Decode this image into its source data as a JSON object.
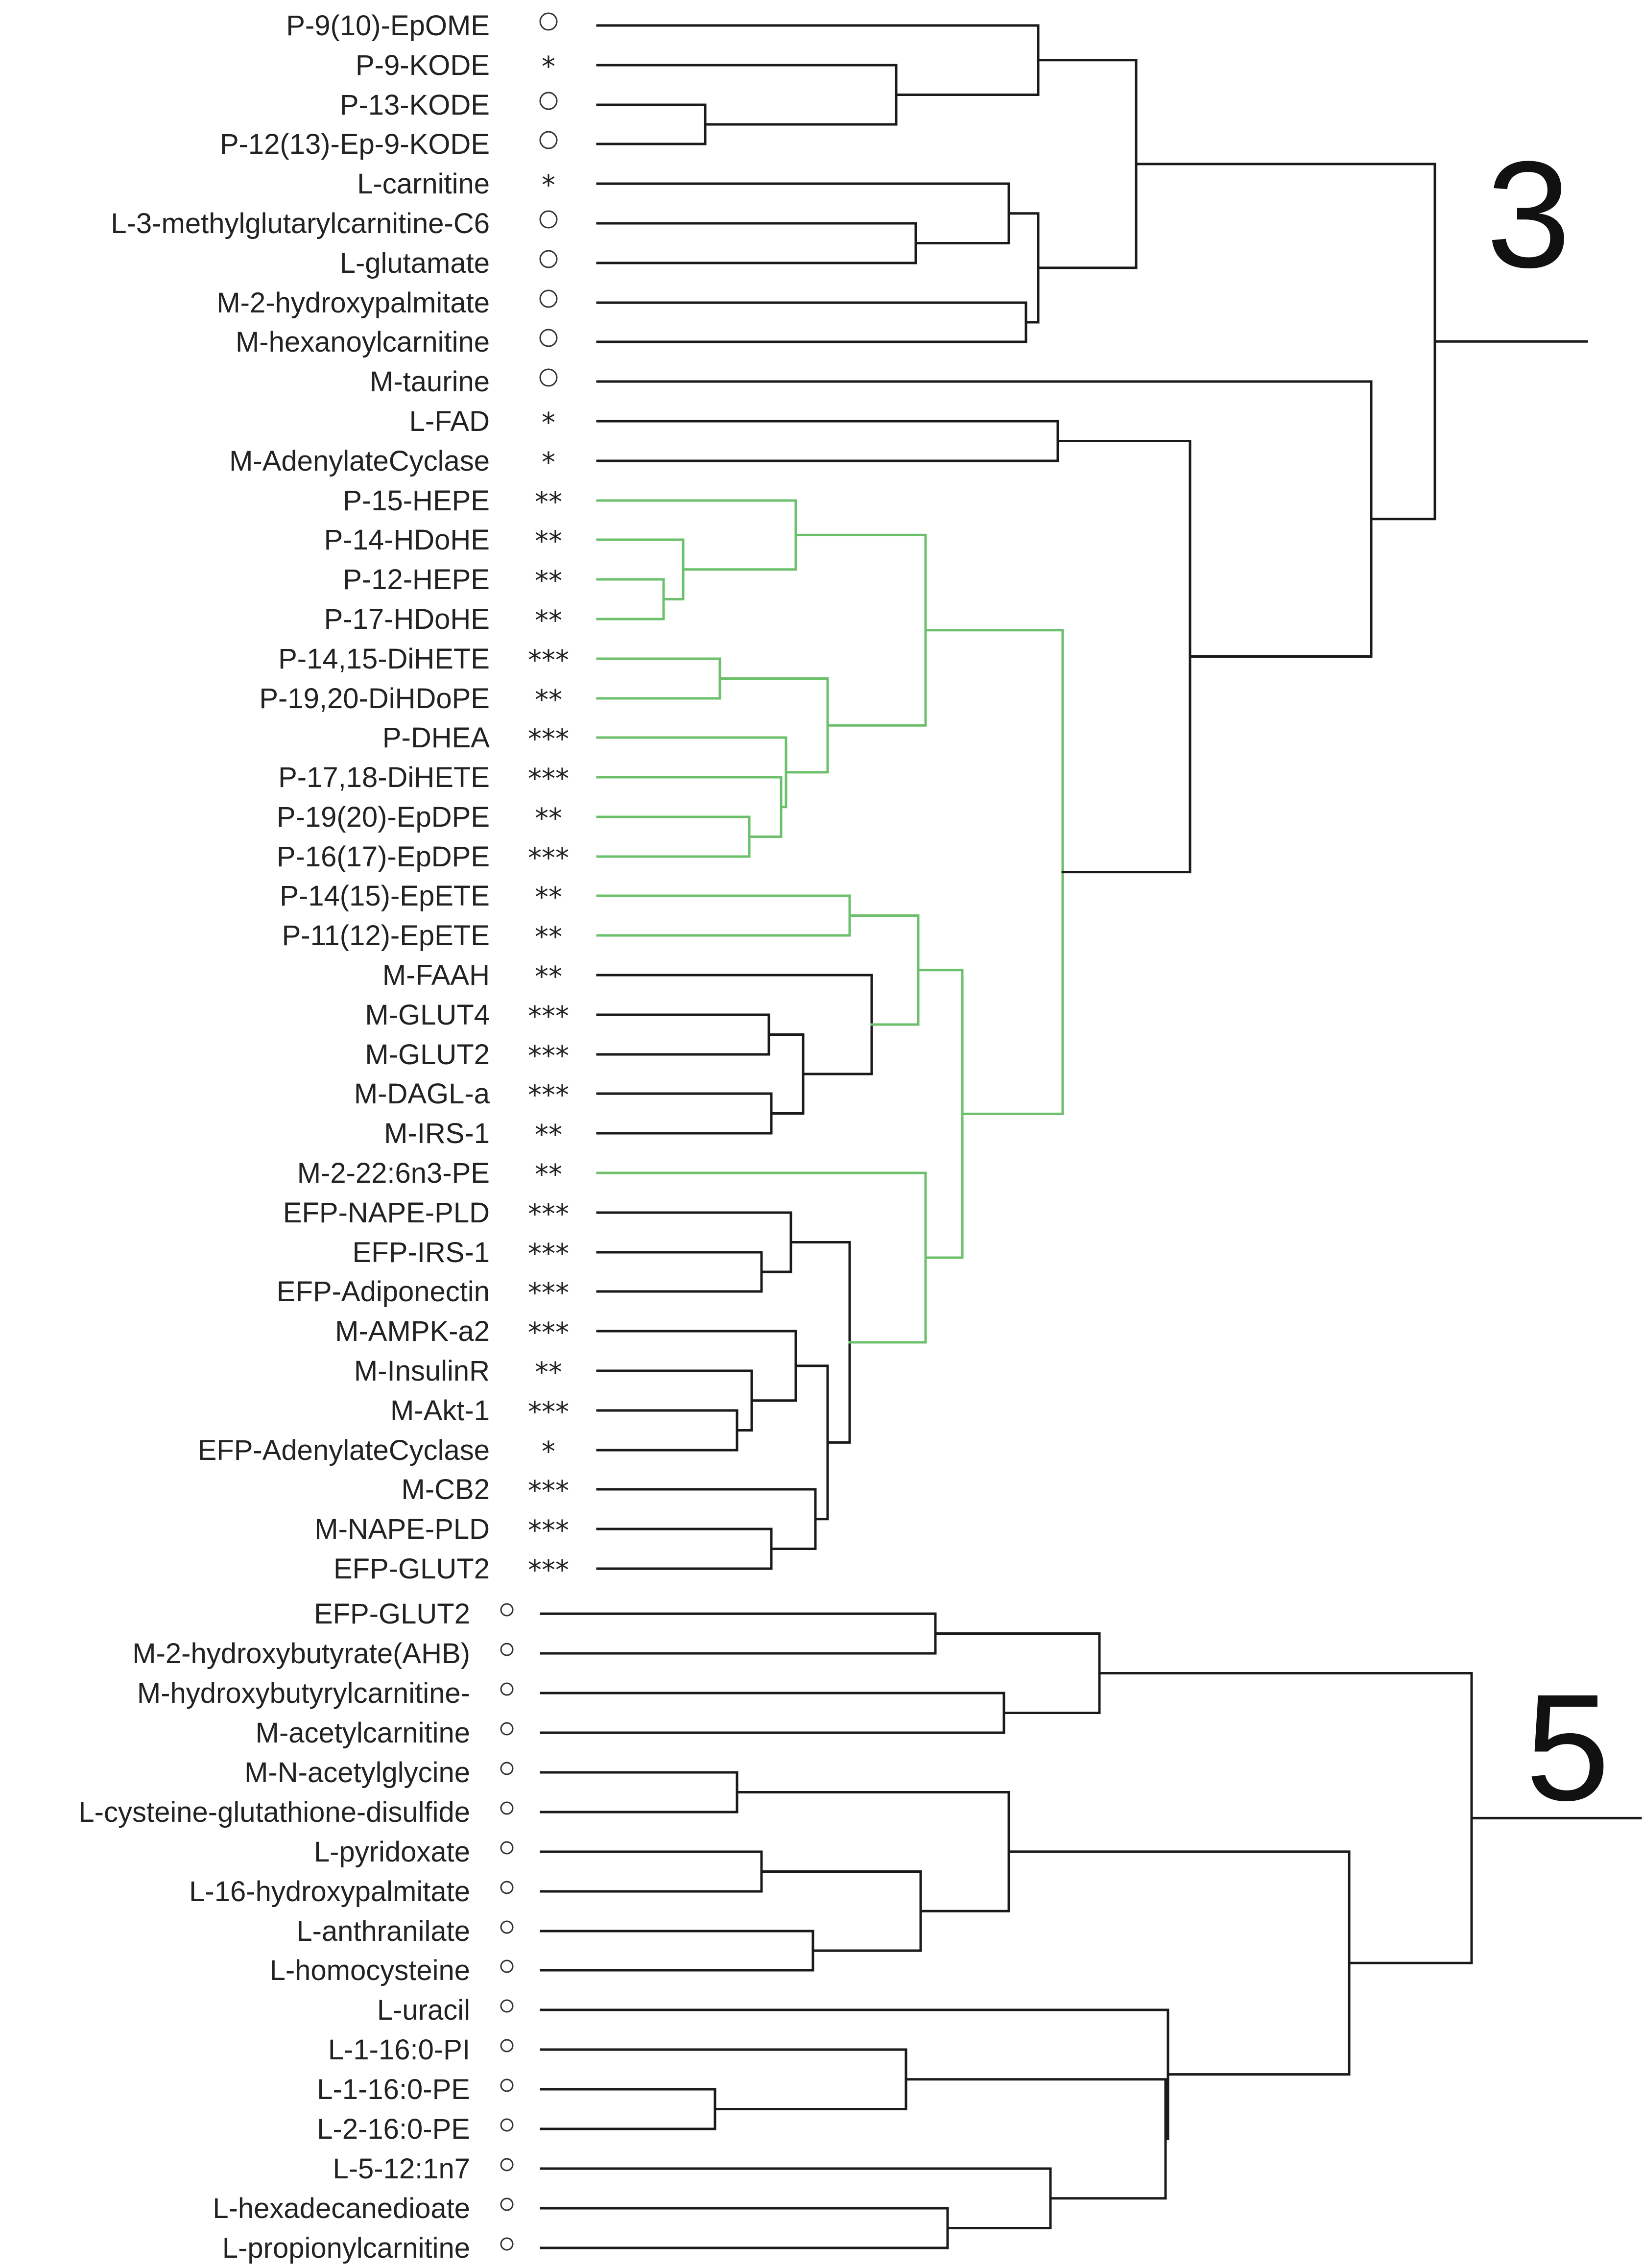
{
  "colors": {
    "default": "#1a1a1a",
    "highlight": "#6cc06c"
  },
  "clusters": [
    {
      "label": "3",
      "leaves": [
        {
          "label": "P-9(10)-EpOME",
          "sig": "○"
        },
        {
          "label": "P-9-KODE",
          "sig": "*"
        },
        {
          "label": "P-13-KODE",
          "sig": "○"
        },
        {
          "label": "P-12(13)-Ep-9-KODE",
          "sig": "○"
        },
        {
          "label": "L-carnitine",
          "sig": "*"
        },
        {
          "label": "L-3-methylglutarylcarnitine-C6",
          "sig": "○"
        },
        {
          "label": "L-glutamate",
          "sig": "○"
        },
        {
          "label": "M-2-hydroxypalmitate",
          "sig": "○"
        },
        {
          "label": "M-hexanoylcarnitine",
          "sig": "○"
        },
        {
          "label": "M-taurine",
          "sig": "○"
        },
        {
          "label": "L-FAD",
          "sig": "*"
        },
        {
          "label": "M-AdenylateCyclase",
          "sig": "*"
        },
        {
          "label": "P-15-HEPE",
          "sig": "**"
        },
        {
          "label": "P-14-HDoHE",
          "sig": "**"
        },
        {
          "label": "P-12-HEPE",
          "sig": "**"
        },
        {
          "label": "P-17-HDoHE",
          "sig": "**"
        },
        {
          "label": "P-14,15-DiHETE",
          "sig": "***"
        },
        {
          "label": "P-19,20-DiHDoPE",
          "sig": "**"
        },
        {
          "label": "P-DHEA",
          "sig": "***"
        },
        {
          "label": "P-17,18-DiHETE",
          "sig": "***"
        },
        {
          "label": "P-19(20)-EpDPE",
          "sig": "**"
        },
        {
          "label": "P-16(17)-EpDPE",
          "sig": "***"
        },
        {
          "label": "P-14(15)-EpETE",
          "sig": "**"
        },
        {
          "label": "P-11(12)-EpETE",
          "sig": "**"
        },
        {
          "label": "M-FAAH",
          "sig": "**"
        },
        {
          "label": "M-GLUT4",
          "sig": "***"
        },
        {
          "label": "M-GLUT2",
          "sig": "***"
        },
        {
          "label": "M-DAGL-a",
          "sig": "***"
        },
        {
          "label": "M-IRS-1",
          "sig": "**"
        },
        {
          "label": "M-2-22:6n3-PE",
          "sig": "**"
        },
        {
          "label": "EFP-NAPE-PLD",
          "sig": "***"
        },
        {
          "label": "EFP-IRS-1",
          "sig": "***"
        },
        {
          "label": "EFP-Adiponectin",
          "sig": "***"
        },
        {
          "label": "M-AMPK-a2",
          "sig": "***"
        },
        {
          "label": "M-InsulinR",
          "sig": "**"
        },
        {
          "label": "M-Akt-1",
          "sig": "***"
        },
        {
          "label": "EFP-AdenylateCyclase",
          "sig": "*"
        },
        {
          "label": "M-CB2",
          "sig": "***"
        },
        {
          "label": "M-NAPE-PLD",
          "sig": "***"
        },
        {
          "label": "EFP-GLUT2",
          "sig": "***"
        }
      ]
    },
    {
      "label": "5",
      "leaves": [
        {
          "label": "EFP-GLUT2",
          "sig": "○"
        },
        {
          "label": "M-2-hydroxybutyrate(AHB)",
          "sig": "○"
        },
        {
          "label": "M-hydroxybutyrylcarnitine-",
          "sig": "○"
        },
        {
          "label": "M-acetylcarnitine",
          "sig": "○"
        },
        {
          "label": "M-N-acetylglycine",
          "sig": "○"
        },
        {
          "label": "L-cysteine-glutathione-disulfide",
          "sig": "○"
        },
        {
          "label": "L-pyridoxate",
          "sig": "○"
        },
        {
          "label": "L-16-hydroxypalmitate",
          "sig": "○"
        },
        {
          "label": "L-anthranilate",
          "sig": "○"
        },
        {
          "label": "L-homocysteine",
          "sig": "○"
        },
        {
          "label": "L-uracil",
          "sig": "○"
        },
        {
          "label": "L-1-16:0-PI",
          "sig": "○"
        },
        {
          "label": "L-1-16:0-PE",
          "sig": "○"
        },
        {
          "label": "L-2-16:0-PE",
          "sig": "○"
        },
        {
          "label": "L-5-12:1n7",
          "sig": "○"
        },
        {
          "label": "L-hexadecanedioate",
          "sig": "○"
        },
        {
          "label": "L-propionylcarnitine",
          "sig": "○"
        }
      ]
    }
  ]
}
